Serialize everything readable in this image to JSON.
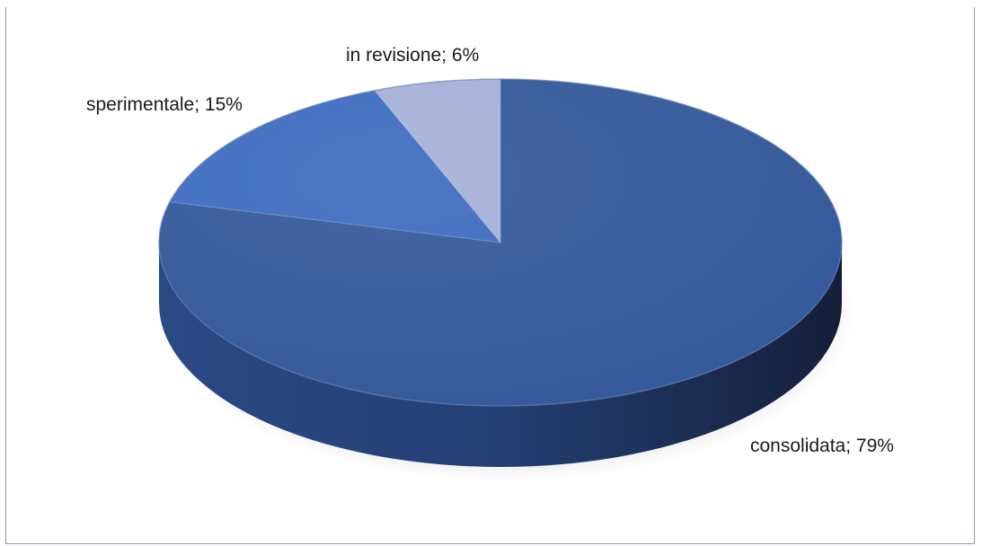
{
  "chart_data": {
    "type": "pie",
    "title": "",
    "slices": [
      {
        "label": "consolidata",
        "value": 79,
        "display": "consolidata; 79%",
        "color": "#34599a"
      },
      {
        "label": "sperimentale",
        "value": 15,
        "display": "sperimentale; 15%",
        "color": "#3d6cc0"
      },
      {
        "label": "in revisione",
        "value": 6,
        "display": "in revisione; 6%",
        "color": "#a6b0d8"
      }
    ],
    "three_d": true,
    "legend": "none",
    "label_format": "category; percentage"
  }
}
